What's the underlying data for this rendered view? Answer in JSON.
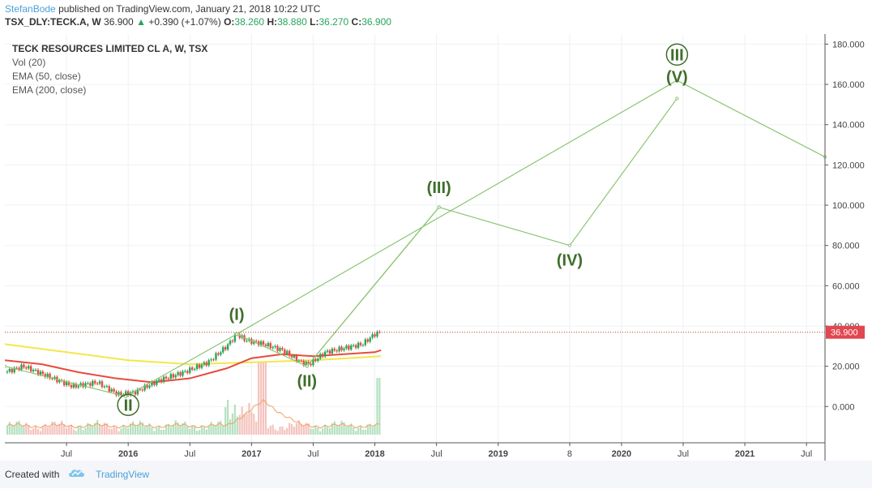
{
  "header": {
    "author": "StefanBode",
    "published": "published on TradingView.com, January 21, 2018 10:22 UTC",
    "symbol": "TSX_DLY:TECK.A, W",
    "price": "36.900",
    "change": "+0.390 (+1.07%)",
    "ohlc": [
      {
        "label": "O:",
        "value": "38.260"
      },
      {
        "label": "H:",
        "value": "38.880"
      },
      {
        "label": "L:",
        "value": "36.270"
      },
      {
        "label": "C:",
        "value": "36.900"
      }
    ]
  },
  "legend": [
    "TECK RESOURCES LIMITED CL A, W, TSX",
    "Vol (20)",
    "EMA (50, close)",
    "EMA (200, close)"
  ],
  "colors": {
    "up": "#26a65b",
    "down": "#e74c3c",
    "ema50": "#e74c3c",
    "ema200": "#f4e64a",
    "wave": "#8bc572",
    "wave_label": "#3f6e2a",
    "price_line": "#c0392b",
    "vol_avg": "#f0a060"
  },
  "chart_data": {
    "type": "candlestick",
    "title": "TECK RESOURCES LIMITED CL A, W, TSX",
    "ylim": [
      -18,
      185
    ],
    "y_ticks": [
      0,
      20,
      40,
      60,
      80,
      100,
      120,
      140,
      160,
      180
    ],
    "y_tick_labels": [
      "0.000",
      "20.000",
      "40.000",
      "60.000",
      "80.000",
      "100.000",
      "120.000",
      "140.000",
      "160.000",
      "180.000"
    ],
    "x_ticks": [
      {
        "t": 2015.5,
        "label": "Jul",
        "bold": false
      },
      {
        "t": 2016.0,
        "label": "2016",
        "bold": true
      },
      {
        "t": 2016.5,
        "label": "Jul",
        "bold": false
      },
      {
        "t": 2017.0,
        "label": "2017",
        "bold": true
      },
      {
        "t": 2017.5,
        "label": "Jul",
        "bold": false
      },
      {
        "t": 2018.0,
        "label": "2018",
        "bold": true
      },
      {
        "t": 2018.5,
        "label": "Jul",
        "bold": false
      },
      {
        "t": 2019.0,
        "label": "2019",
        "bold": true
      },
      {
        "t": 2019.58,
        "label": "8",
        "bold": false
      },
      {
        "t": 2020.0,
        "label": "2020",
        "bold": true
      },
      {
        "t": 2020.5,
        "label": "Jul",
        "bold": false
      },
      {
        "t": 2021.0,
        "label": "2021",
        "bold": true
      },
      {
        "t": 2021.5,
        "label": "Jul",
        "bold": false
      }
    ],
    "last_price": 36.9,
    "last_price_label": "36.900",
    "price_path": [
      {
        "t": 2015.0,
        "v": 17
      },
      {
        "t": 2015.15,
        "v": 20
      },
      {
        "t": 2015.35,
        "v": 15
      },
      {
        "t": 2015.55,
        "v": 10
      },
      {
        "t": 2015.75,
        "v": 12
      },
      {
        "t": 2015.92,
        "v": 6
      },
      {
        "t": 2016.05,
        "v": 7
      },
      {
        "t": 2016.25,
        "v": 13
      },
      {
        "t": 2016.45,
        "v": 17
      },
      {
        "t": 2016.65,
        "v": 22
      },
      {
        "t": 2016.8,
        "v": 30
      },
      {
        "t": 2016.88,
        "v": 36
      },
      {
        "t": 2016.95,
        "v": 33
      },
      {
        "t": 2017.1,
        "v": 31
      },
      {
        "t": 2017.25,
        "v": 28
      },
      {
        "t": 2017.4,
        "v": 22
      },
      {
        "t": 2017.47,
        "v": 21
      },
      {
        "t": 2017.6,
        "v": 27
      },
      {
        "t": 2017.75,
        "v": 29
      },
      {
        "t": 2017.9,
        "v": 31
      },
      {
        "t": 2018.0,
        "v": 36
      },
      {
        "t": 2018.05,
        "v": 37
      }
    ],
    "ema50": [
      {
        "t": 2015.0,
        "v": 23
      },
      {
        "t": 2015.3,
        "v": 21
      },
      {
        "t": 2015.6,
        "v": 17
      },
      {
        "t": 2015.9,
        "v": 14
      },
      {
        "t": 2016.2,
        "v": 12
      },
      {
        "t": 2016.5,
        "v": 14
      },
      {
        "t": 2016.8,
        "v": 19
      },
      {
        "t": 2017.0,
        "v": 24
      },
      {
        "t": 2017.25,
        "v": 26
      },
      {
        "t": 2017.5,
        "v": 25
      },
      {
        "t": 2017.75,
        "v": 26
      },
      {
        "t": 2018.0,
        "v": 27
      },
      {
        "t": 2018.05,
        "v": 28
      }
    ],
    "ema200": [
      {
        "t": 2015.0,
        "v": 31
      },
      {
        "t": 2015.5,
        "v": 27
      },
      {
        "t": 2016.0,
        "v": 23
      },
      {
        "t": 2016.5,
        "v": 21
      },
      {
        "t": 2017.0,
        "v": 22
      },
      {
        "t": 2017.5,
        "v": 23
      },
      {
        "t": 2018.05,
        "v": 25
      }
    ],
    "wave_lines": [
      [
        {
          "t": 2015.0,
          "v": 20
        },
        {
          "t": 2015.98,
          "v": 5
        },
        {
          "t": 2016.88,
          "v": 36
        },
        {
          "t": 2017.45,
          "v": 20
        },
        {
          "t": 2018.52,
          "v": 99
        },
        {
          "t": 2019.58,
          "v": 80
        },
        {
          "t": 2020.45,
          "v": 153
        }
      ],
      [
        {
          "t": 2016.88,
          "v": 36
        },
        {
          "t": 2020.45,
          "v": 162
        },
        {
          "t": 2021.65,
          "v": 124
        }
      ],
      [
        {
          "t": 2017.45,
          "v": 20
        },
        {
          "t": 2018.52,
          "v": 99
        }
      ]
    ],
    "wave_labels": [
      {
        "text": "II",
        "t": 2016.0,
        "v": -2,
        "circled": true
      },
      {
        "text": "(I)",
        "t": 2016.88,
        "v": 43,
        "circled": false
      },
      {
        "text": "(II)",
        "t": 2017.45,
        "v": 10,
        "circled": false
      },
      {
        "text": "(III)",
        "t": 2018.52,
        "v": 106,
        "circled": false
      },
      {
        "text": "(IV)",
        "t": 2019.58,
        "v": 70,
        "circled": false
      },
      {
        "text": "(V)",
        "t": 2020.45,
        "v": 161,
        "circled": false
      },
      {
        "text": "III",
        "t": 2020.45,
        "v": 172,
        "circled": true
      }
    ]
  },
  "footer": {
    "created_with": "Created with",
    "brand": "TradingView"
  }
}
